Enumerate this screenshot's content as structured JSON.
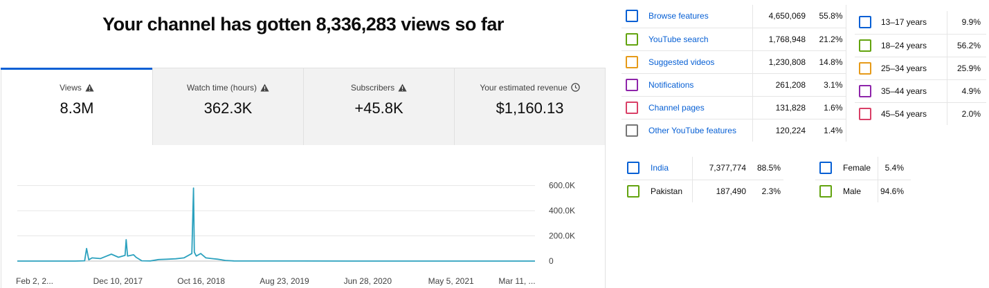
{
  "headline": "Your channel has gotten 8,336,283 views so far",
  "tabs": [
    {
      "label": "Views",
      "value": "8.3M",
      "icon": "warning-icon"
    },
    {
      "label": "Watch time (hours)",
      "value": "362.3K",
      "icon": "warning-icon"
    },
    {
      "label": "Subscribers",
      "value": "+45.8K",
      "icon": "warning-icon"
    },
    {
      "label": "Your estimated revenue",
      "value": "$1,160.13",
      "icon": "clock-icon"
    }
  ],
  "colors": {
    "accent": "#065fd4",
    "line": "#2ba1be"
  },
  "chart_data": {
    "type": "line",
    "title": "",
    "xlabel": "",
    "ylabel": "",
    "x_tick_labels": [
      "Feb 2, 2...",
      "Dec 10, 2017",
      "Oct 16, 2018",
      "Aug 23, 2019",
      "Jun 28, 2020",
      "May 5, 2021",
      "Mar 11, ..."
    ],
    "y_tick_labels": [
      "600.0K",
      "400.0K",
      "200.0K",
      "0"
    ],
    "y_ticks": [
      600000,
      400000,
      200000,
      0
    ],
    "ylim": [
      0,
      620000
    ],
    "x_start": "2017-02-02",
    "x_end": "2022-03-31",
    "grid": true,
    "series": [
      {
        "name": "",
        "color": "#2ba1be",
        "x": [
          "2017-02-02",
          "2017-06-01",
          "2017-09-01",
          "2017-10-05",
          "2017-10-12",
          "2017-10-20",
          "2017-11-01",
          "2017-12-01",
          "2018-01-10",
          "2018-02-05",
          "2018-03-01",
          "2018-03-05",
          "2018-03-10",
          "2018-04-01",
          "2018-04-10",
          "2018-05-01",
          "2018-06-01",
          "2018-07-01",
          "2018-08-01",
          "2018-09-01",
          "2018-10-01",
          "2018-10-30",
          "2018-11-05",
          "2018-11-08",
          "2018-11-15",
          "2018-12-01",
          "2018-12-20",
          "2019-01-10",
          "2019-02-01",
          "2019-03-01",
          "2019-04-01",
          "2019-06-01",
          "2019-12-01",
          "2020-06-01",
          "2021-01-01",
          "2021-06-01",
          "2022-03-31"
        ],
        "y": [
          0,
          0,
          0,
          2000,
          100000,
          10000,
          25000,
          20000,
          55000,
          30000,
          45000,
          170000,
          40000,
          50000,
          30000,
          2000,
          1000,
          12000,
          15000,
          18000,
          25000,
          60000,
          580000,
          70000,
          40000,
          60000,
          25000,
          20000,
          15000,
          5000,
          1000,
          500,
          300,
          100,
          50,
          50,
          50
        ]
      }
    ]
  },
  "traffic_sources": [
    {
      "label": "Browse features",
      "count": "4,650,069",
      "pct": "55.8%",
      "color": "#065fd4"
    },
    {
      "label": "YouTube search",
      "count": "1,768,948",
      "pct": "21.2%",
      "color": "#62a30e"
    },
    {
      "label": "Suggested videos",
      "count": "1,230,808",
      "pct": "14.8%",
      "color": "#e69a18"
    },
    {
      "label": "Notifications",
      "count": "261,208",
      "pct": "3.1%",
      "color": "#8e24aa"
    },
    {
      "label": "Channel pages",
      "count": "131,828",
      "pct": "1.6%",
      "color": "#d93f66"
    },
    {
      "label": "Other YouTube features",
      "count": "120,224",
      "pct": "1.4%",
      "color": "#757575"
    }
  ],
  "age_groups": [
    {
      "label": "13–17 years",
      "pct": "9.9%",
      "color": "#065fd4"
    },
    {
      "label": "18–24 years",
      "pct": "56.2%",
      "color": "#62a30e"
    },
    {
      "label": "25–34 years",
      "pct": "25.9%",
      "color": "#e69a18"
    },
    {
      "label": "35–44 years",
      "pct": "4.9%",
      "color": "#8e24aa"
    },
    {
      "label": "45–54 years",
      "pct": "2.0%",
      "color": "#d93f66"
    }
  ],
  "geography": [
    {
      "label": "India",
      "count": "7,377,774",
      "pct": "88.5%",
      "color": "#065fd4"
    },
    {
      "label": "Pakistan",
      "count": "187,490",
      "pct": "2.3%",
      "color": "#62a30e"
    }
  ],
  "gender": [
    {
      "label": "Female",
      "pct": "5.4%",
      "color": "#065fd4"
    },
    {
      "label": "Male",
      "pct": "94.6%",
      "color": "#62a30e"
    }
  ]
}
